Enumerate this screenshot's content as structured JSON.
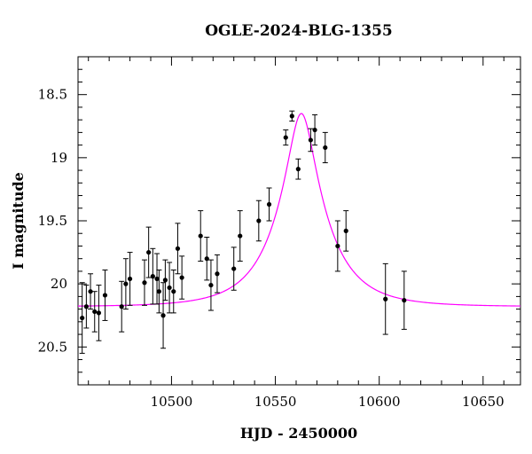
{
  "chart_data": {
    "type": "scatter",
    "title": "OGLE-2024-BLG-1355",
    "xlabel": "HJD - 2450000",
    "ylabel": "I magnitude",
    "xlim": [
      10455,
      10668
    ],
    "ylim": [
      20.8,
      18.2
    ],
    "y_inverted": true,
    "xticks": [
      10500,
      10550,
      10600,
      10650
    ],
    "yticks": [
      18.5,
      19,
      19.5,
      20,
      20.5
    ],
    "ytick_labels": [
      "18.5",
      "19",
      "19.5",
      "20",
      "20.5"
    ],
    "grid": false,
    "colors": {
      "points": "#000000",
      "model": "#ff00ff",
      "axes": "#000000"
    },
    "series": [
      {
        "kind": "points_with_errorbars",
        "points": [
          {
            "x": 10457,
            "y": 20.27,
            "err": 0.28
          },
          {
            "x": 10459,
            "y": 20.18,
            "err": 0.17
          },
          {
            "x": 10461,
            "y": 20.06,
            "err": 0.14
          },
          {
            "x": 10463,
            "y": 20.22,
            "err": 0.16
          },
          {
            "x": 10465,
            "y": 20.23,
            "err": 0.22
          },
          {
            "x": 10468,
            "y": 20.09,
            "err": 0.2
          },
          {
            "x": 10476,
            "y": 20.18,
            "err": 0.2
          },
          {
            "x": 10478,
            "y": 20.0,
            "err": 0.2
          },
          {
            "x": 10480,
            "y": 19.96,
            "err": 0.21
          },
          {
            "x": 10487,
            "y": 19.99,
            "err": 0.18
          },
          {
            "x": 10489,
            "y": 19.75,
            "err": 0.2
          },
          {
            "x": 10491,
            "y": 19.94,
            "err": 0.22
          },
          {
            "x": 10493,
            "y": 19.96,
            "err": 0.2
          },
          {
            "x": 10494,
            "y": 20.06,
            "err": 0.17
          },
          {
            "x": 10496,
            "y": 20.25,
            "err": 0.26
          },
          {
            "x": 10497,
            "y": 19.97,
            "err": 0.16
          },
          {
            "x": 10499,
            "y": 20.03,
            "err": 0.2
          },
          {
            "x": 10501,
            "y": 20.06,
            "err": 0.17
          },
          {
            "x": 10503,
            "y": 19.72,
            "err": 0.2
          },
          {
            "x": 10505,
            "y": 19.95,
            "err": 0.17
          },
          {
            "x": 10514,
            "y": 19.62,
            "err": 0.2
          },
          {
            "x": 10517,
            "y": 19.8,
            "err": 0.17
          },
          {
            "x": 10519,
            "y": 20.01,
            "err": 0.2
          },
          {
            "x": 10522,
            "y": 19.92,
            "err": 0.15
          },
          {
            "x": 10530,
            "y": 19.88,
            "err": 0.17
          },
          {
            "x": 10533,
            "y": 19.62,
            "err": 0.2
          },
          {
            "x": 10542,
            "y": 19.5,
            "err": 0.16
          },
          {
            "x": 10547,
            "y": 19.37,
            "err": 0.13
          },
          {
            "x": 10555,
            "y": 18.84,
            "err": 0.06
          },
          {
            "x": 10558,
            "y": 18.67,
            "err": 0.04
          },
          {
            "x": 10561,
            "y": 19.09,
            "err": 0.08
          },
          {
            "x": 10567,
            "y": 18.86,
            "err": 0.09
          },
          {
            "x": 10569,
            "y": 18.78,
            "err": 0.12
          },
          {
            "x": 10574,
            "y": 18.92,
            "err": 0.12
          },
          {
            "x": 10580,
            "y": 19.7,
            "err": 0.2
          },
          {
            "x": 10584,
            "y": 19.58,
            "err": 0.16
          },
          {
            "x": 10603,
            "y": 20.12,
            "err": 0.28
          },
          {
            "x": 10612,
            "y": 20.13,
            "err": 0.23
          }
        ]
      },
      {
        "kind": "model_curve",
        "model": {
          "t0": 10562.5,
          "u0": 0.25,
          "tE": 24,
          "baseline": 20.18
        }
      }
    ]
  }
}
